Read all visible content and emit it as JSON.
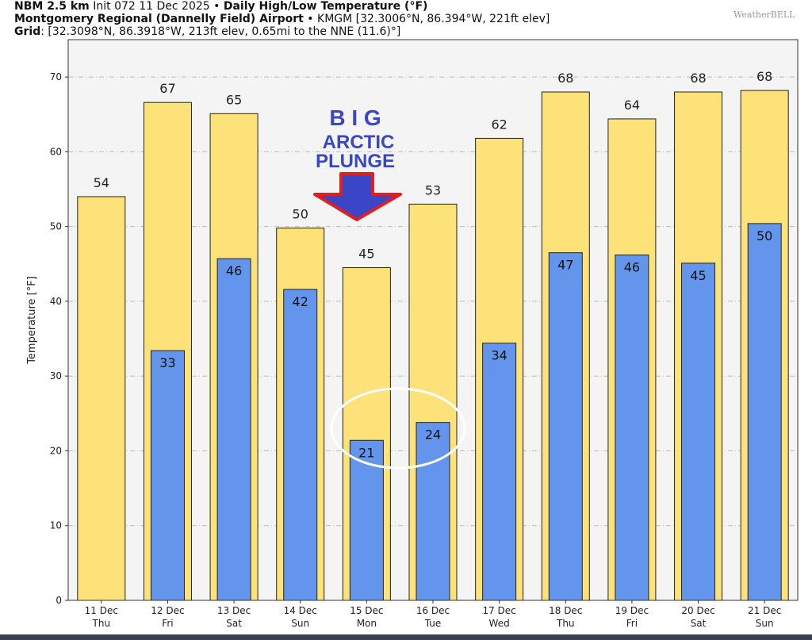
{
  "header": {
    "line1_bold": "NBM 2.5 km",
    "line1_mid": "Init 072 11 Dec 2025",
    "line1_title": "Daily High/Low Temperature (°F)",
    "line2_bold": "Montgomery Regional (Dannelly Field) Airport",
    "line2_rest": "KMGM [32.3006°N, 86.394°W, 221ft elev]",
    "line3_bold": "Grid",
    "line3_rest": ": [32.3098°N, 86.3918°W, 213ft elev, 0.65mi to the NNE (11.6)°]",
    "logo": "WeatherBELL"
  },
  "annotation": {
    "line1": "B I G",
    "line2": "ARCTIC",
    "line3": "PLUNGE"
  },
  "colors": {
    "high": "#fde27a",
    "low": "#6495ed",
    "plot_bg": "#f4f4f4",
    "annot": "#3a46c8",
    "arrow_outline": "#e02020"
  },
  "chart_data": {
    "type": "bar",
    "title": "Daily High/Low Temperature (°F)",
    "xlabel": "",
    "ylabel": "Temperature [°F]",
    "ylim": [
      0,
      75
    ],
    "yticks": [
      0,
      10,
      20,
      30,
      40,
      50,
      60,
      70
    ],
    "grid": true,
    "categories": [
      "11 Dec|Thu",
      "12 Dec|Fri",
      "13 Dec|Sat",
      "14 Dec|Sun",
      "15 Dec|Mon",
      "16 Dec|Tue",
      "17 Dec|Wed",
      "18 Dec|Thu",
      "19 Dec|Fri",
      "20 Dec|Sat",
      "21 Dec|Sun"
    ],
    "series": [
      {
        "name": "High",
        "values": [
          54,
          66.6,
          65.1,
          49.8,
          44.5,
          53,
          61.8,
          68,
          64.4,
          68,
          68.2
        ],
        "labels": [
          "54",
          "67",
          "65",
          "50",
          "45",
          "53",
          "62",
          "68",
          "64",
          "68",
          "68"
        ]
      },
      {
        "name": "Low",
        "values": [
          null,
          33.4,
          45.7,
          41.6,
          21.4,
          23.8,
          34.4,
          46.5,
          46.2,
          45.1,
          50.4
        ],
        "labels": [
          null,
          "33",
          "46",
          "42",
          "21",
          "24",
          "34",
          "47",
          "46",
          "45",
          "50"
        ]
      }
    ]
  }
}
